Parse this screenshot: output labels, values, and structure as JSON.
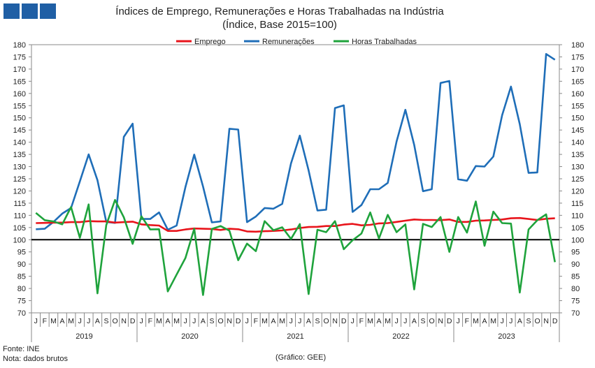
{
  "header": {
    "title": "Índices de Emprego, Remunerações e Horas Trabalhadas na Indústria",
    "subtitle": "(Índice, Base 2015=100)",
    "logo_color": "#1f5fa5"
  },
  "footer": {
    "source": "Fonte: INE",
    "note": "Nota: dados brutos",
    "credit": "(Gráfico: GEE)"
  },
  "chart_data": {
    "type": "line",
    "title": "Índices de Emprego, Remunerações e Horas Trabalhadas na Indústria",
    "subtitle": "(Índice, Base 2015=100)",
    "ylim": [
      70,
      180
    ],
    "yticks": [
      70,
      75,
      80,
      85,
      90,
      95,
      100,
      105,
      110,
      115,
      120,
      125,
      130,
      135,
      140,
      145,
      150,
      155,
      160,
      165,
      170,
      175,
      180
    ],
    "reference_line": 100,
    "grid": false,
    "legend_position": "top",
    "month_labels": [
      "J",
      "F",
      "M",
      "A",
      "M",
      "J",
      "J",
      "A",
      "S",
      "O",
      "N",
      "D"
    ],
    "years": [
      "2019",
      "2020",
      "2021",
      "2022",
      "2023"
    ],
    "series": [
      {
        "name": "Emprego",
        "color": "#e8141b",
        "values": [
          106.8,
          106.9,
          107.0,
          107.0,
          107.2,
          107.2,
          107.6,
          107.5,
          107.5,
          107.0,
          107.2,
          107.4,
          106.3,
          106.0,
          105.8,
          103.6,
          103.6,
          104.2,
          104.6,
          104.5,
          104.4,
          104.0,
          104.5,
          104.3,
          103.4,
          103.3,
          103.5,
          103.6,
          103.8,
          104.2,
          104.8,
          105.2,
          105.3,
          105.6,
          105.6,
          106.2,
          106.5,
          105.9,
          106.1,
          106.7,
          106.8,
          107.3,
          107.8,
          108.3,
          108.1,
          108.1,
          108.0,
          108.3,
          107.3,
          107.3,
          107.8,
          107.9,
          108.1,
          108.3,
          108.8,
          108.9,
          108.5,
          108.1,
          108.6,
          108.8
        ]
      },
      {
        "name": "Remunerações",
        "color": "#1f6eb8",
        "values": [
          104.3,
          104.5,
          107.3,
          110.7,
          113.0,
          123.9,
          135.0,
          124.4,
          107.3,
          106.9,
          142.2,
          147.6,
          108.5,
          108.5,
          111.2,
          104.1,
          105.8,
          121.6,
          134.9,
          121.8,
          107.1,
          107.5,
          145.5,
          145.2,
          107.2,
          109.5,
          113.0,
          112.7,
          114.7,
          131.3,
          142.7,
          128.4,
          112.0,
          112.3,
          154.0,
          155.1,
          111.4,
          114.2,
          120.7,
          120.7,
          123.3,
          140.3,
          153.3,
          138.9,
          119.9,
          120.7,
          164.3,
          165.1,
          124.8,
          124.2,
          130.2,
          130.0,
          134.1,
          151.1,
          162.8,
          147.4,
          127.4,
          127.6,
          176.2,
          173.8
        ]
      },
      {
        "name": "Horas Trabalhadas",
        "color": "#1fa33c",
        "values": [
          111.0,
          108.0,
          107.5,
          106.3,
          113.4,
          100.8,
          114.5,
          78.0,
          106.0,
          116.3,
          109.2,
          98.3,
          109.6,
          104.2,
          104.3,
          78.8,
          85.7,
          92.5,
          104.5,
          77.3,
          104.4,
          105.6,
          103.7,
          91.6,
          98.4,
          95.3,
          107.6,
          103.9,
          105.1,
          100.3,
          106.4,
          77.7,
          104.1,
          103.1,
          107.6,
          96.1,
          99.8,
          102.5,
          111.2,
          100.5,
          110.2,
          103.1,
          106.3,
          79.6,
          106.5,
          105.2,
          109.3,
          95.0,
          109.3,
          102.9,
          115.7,
          97.5,
          111.5,
          106.8,
          106.6,
          78.3,
          104.2,
          108.0,
          110.4,
          90.8
        ]
      }
    ]
  }
}
